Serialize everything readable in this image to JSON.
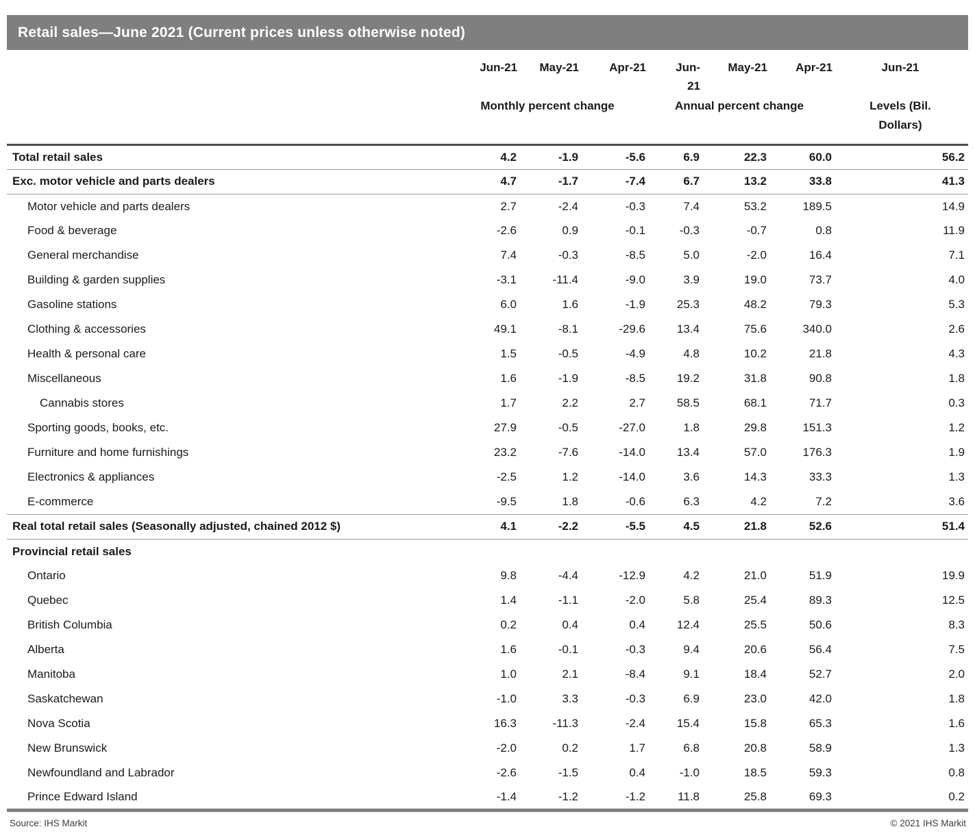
{
  "title": "Retail sales—June 2021 (Current prices unless otherwise noted)",
  "table": {
    "month_headers": [
      "Jun-21",
      "May-21",
      "Apr-21",
      "Jun-\n21",
      "May-21",
      "Apr-21",
      "Jun-21"
    ],
    "group_headers": [
      "Monthly percent change",
      "Annual percent change",
      "Levels (Bil.\nDollars)"
    ],
    "rows": [
      {
        "label": "Total retail sales",
        "indent": 0,
        "bold": true,
        "rule": true,
        "values": [
          "4.2",
          "-1.9",
          "-5.6",
          "6.9",
          "22.3",
          "60.0",
          "56.2"
        ]
      },
      {
        "label": "Exc. motor vehicle and parts dealers",
        "indent": 0,
        "bold": true,
        "rule": true,
        "values": [
          "4.7",
          "-1.7",
          "-7.4",
          "6.7",
          "13.2",
          "33.8",
          "41.3"
        ]
      },
      {
        "label": "Motor vehicle and parts dealers",
        "indent": 1,
        "bold": false,
        "rule": false,
        "values": [
          "2.7",
          "-2.4",
          "-0.3",
          "7.4",
          "53.2",
          "189.5",
          "14.9"
        ]
      },
      {
        "label": "Food & beverage",
        "indent": 1,
        "bold": false,
        "rule": false,
        "values": [
          "-2.6",
          "0.9",
          "-0.1",
          "-0.3",
          "-0.7",
          "0.8",
          "11.9"
        ]
      },
      {
        "label": "General merchandise",
        "indent": 1,
        "bold": false,
        "rule": false,
        "values": [
          "7.4",
          "-0.3",
          "-8.5",
          "5.0",
          "-2.0",
          "16.4",
          "7.1"
        ]
      },
      {
        "label": "Building & garden supplies",
        "indent": 1,
        "bold": false,
        "rule": false,
        "values": [
          "-3.1",
          "-11.4",
          "-9.0",
          "3.9",
          "19.0",
          "73.7",
          "4.0"
        ]
      },
      {
        "label": "Gasoline stations",
        "indent": 1,
        "bold": false,
        "rule": false,
        "values": [
          "6.0",
          "1.6",
          "-1.9",
          "25.3",
          "48.2",
          "79.3",
          "5.3"
        ]
      },
      {
        "label": "Clothing & accessories",
        "indent": 1,
        "bold": false,
        "rule": false,
        "values": [
          "49.1",
          "-8.1",
          "-29.6",
          "13.4",
          "75.6",
          "340.0",
          "2.6"
        ]
      },
      {
        "label": "Health & personal care",
        "indent": 1,
        "bold": false,
        "rule": false,
        "values": [
          "1.5",
          "-0.5",
          "-4.9",
          "4.8",
          "10.2",
          "21.8",
          "4.3"
        ]
      },
      {
        "label": "Miscellaneous",
        "indent": 1,
        "bold": false,
        "rule": false,
        "values": [
          "1.6",
          "-1.9",
          "-8.5",
          "19.2",
          "31.8",
          "90.8",
          "1.8"
        ]
      },
      {
        "label": "Cannabis stores",
        "indent": 2,
        "bold": false,
        "rule": false,
        "values": [
          "1.7",
          "2.2",
          "2.7",
          "58.5",
          "68.1",
          "71.7",
          "0.3"
        ]
      },
      {
        "label": "Sporting goods, books, etc.",
        "indent": 1,
        "bold": false,
        "rule": false,
        "values": [
          "27.9",
          "-0.5",
          "-27.0",
          "1.8",
          "29.8",
          "151.3",
          "1.2"
        ]
      },
      {
        "label": "Furniture and home furnishings",
        "indent": 1,
        "bold": false,
        "rule": false,
        "values": [
          "23.2",
          "-7.6",
          "-14.0",
          "13.4",
          "57.0",
          "176.3",
          "1.9"
        ]
      },
      {
        "label": "Electronics & appliances",
        "indent": 1,
        "bold": false,
        "rule": false,
        "values": [
          "-2.5",
          "1.2",
          "-14.0",
          "3.6",
          "14.3",
          "33.3",
          "1.3"
        ]
      },
      {
        "label": "E-commerce",
        "indent": 1,
        "bold": false,
        "rule": true,
        "values": [
          "-9.5",
          "1.8",
          "-0.6",
          "6.3",
          "4.2",
          "7.2",
          "3.6"
        ]
      },
      {
        "label": "Real total retail sales (Seasonally adjusted, chained 2012 $)",
        "indent": 0,
        "bold": true,
        "rule": true,
        "values": [
          "4.1",
          "-2.2",
          "-5.5",
          "4.5",
          "21.8",
          "52.6",
          "51.4"
        ]
      },
      {
        "label": "Provincial retail sales",
        "indent": 0,
        "bold": true,
        "rule": false,
        "values": [
          "",
          "",
          "",
          "",
          "",
          "",
          ""
        ]
      },
      {
        "label": "Ontario",
        "indent": 1,
        "bold": false,
        "rule": false,
        "values": [
          "9.8",
          "-4.4",
          "-12.9",
          "4.2",
          "21.0",
          "51.9",
          "19.9"
        ]
      },
      {
        "label": "Quebec",
        "indent": 1,
        "bold": false,
        "rule": false,
        "values": [
          "1.4",
          "-1.1",
          "-2.0",
          "5.8",
          "25.4",
          "89.3",
          "12.5"
        ]
      },
      {
        "label": "British Columbia",
        "indent": 1,
        "bold": false,
        "rule": false,
        "values": [
          "0.2",
          "0.4",
          "0.4",
          "12.4",
          "25.5",
          "50.6",
          "8.3"
        ]
      },
      {
        "label": "Alberta",
        "indent": 1,
        "bold": false,
        "rule": false,
        "values": [
          "1.6",
          "-0.1",
          "-0.3",
          "9.4",
          "20.6",
          "56.4",
          "7.5"
        ]
      },
      {
        "label": "Manitoba",
        "indent": 1,
        "bold": false,
        "rule": false,
        "values": [
          "1.0",
          "2.1",
          "-8.4",
          "9.1",
          "18.4",
          "52.7",
          "2.0"
        ]
      },
      {
        "label": "Saskatchewan",
        "indent": 1,
        "bold": false,
        "rule": false,
        "values": [
          "-1.0",
          "3.3",
          "-0.3",
          "6.9",
          "23.0",
          "42.0",
          "1.8"
        ]
      },
      {
        "label": "Nova Scotia",
        "indent": 1,
        "bold": false,
        "rule": false,
        "values": [
          "16.3",
          "-11.3",
          "-2.4",
          "15.4",
          "15.8",
          "65.3",
          "1.6"
        ]
      },
      {
        "label": "New Brunswick",
        "indent": 1,
        "bold": false,
        "rule": false,
        "values": [
          "-2.0",
          "0.2",
          "1.7",
          "6.8",
          "20.8",
          "58.9",
          "1.3"
        ]
      },
      {
        "label": "Newfoundland and Labrador",
        "indent": 1,
        "bold": false,
        "rule": false,
        "values": [
          "-2.6",
          "-1.5",
          "0.4",
          "-1.0",
          "18.5",
          "59.3",
          "0.8"
        ]
      },
      {
        "label": "Prince Edward Island",
        "indent": 1,
        "bold": false,
        "rule": false,
        "values": [
          "-1.4",
          "-1.2",
          "-1.2",
          "11.8",
          "25.8",
          "69.3",
          "0.2"
        ]
      }
    ]
  },
  "footer": {
    "source": "Source: IHS Markit",
    "copyright": "© 2021 IHS Markit"
  },
  "colors": {
    "title_bar_bg": "#7f7f7f",
    "title_text": "#ffffff",
    "header_rule": "#4d4d4d",
    "row_rule": "#9b9b9b",
    "bottom_rule": "#808080",
    "body_text": "#1a1a1a"
  }
}
